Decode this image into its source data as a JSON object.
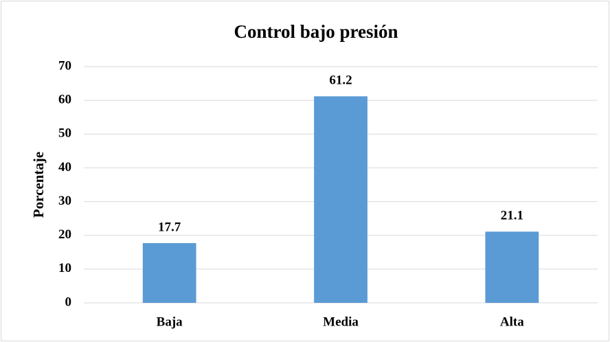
{
  "chart_data": {
    "type": "bar",
    "title": "Control bajo presión",
    "y_label": "Porcentaje",
    "categories": [
      "Baja",
      "Media",
      "Alta"
    ],
    "values": [
      17.7,
      61.2,
      21.1
    ],
    "color": "#5b9bd5",
    "ylim": [
      0,
      70
    ],
    "yticks": [
      0,
      10,
      20,
      30,
      40,
      50,
      60,
      70
    ],
    "grid": true
  }
}
